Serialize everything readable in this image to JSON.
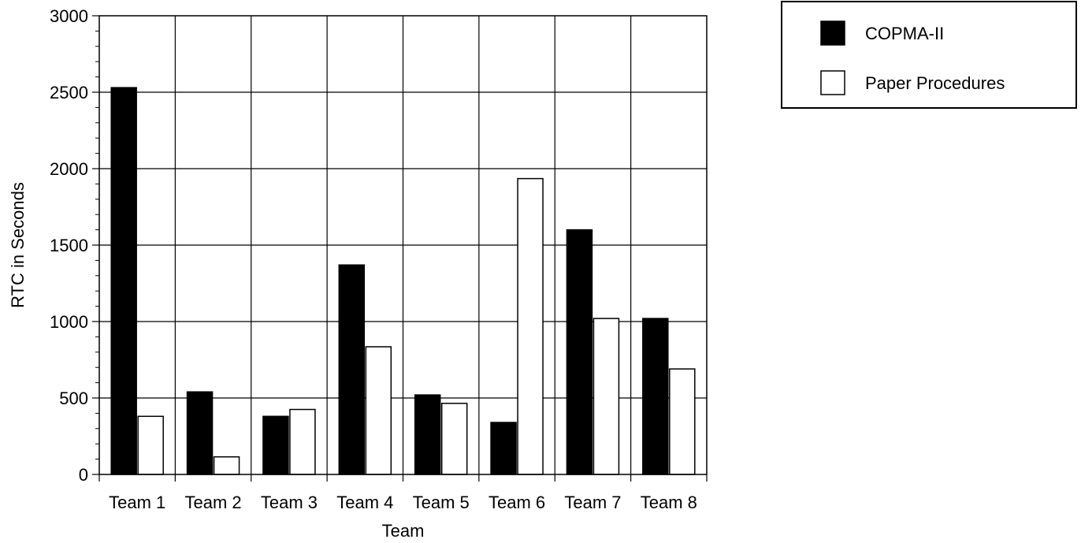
{
  "chart_data": {
    "type": "bar",
    "title": "",
    "xlabel": "Team",
    "ylabel": "RTC in Seconds",
    "ylim": [
      0,
      3000
    ],
    "yticks": [
      0,
      500,
      1000,
      1500,
      2000,
      2500,
      3000
    ],
    "categories": [
      "Team 1",
      "Team 2",
      "Team 3",
      "Team 4",
      "Team 5",
      "Team 6",
      "Team 7",
      "Team 8"
    ],
    "series": [
      {
        "name": "COPMA-II",
        "color": "#000000",
        "values": [
          2530,
          540,
          380,
          1370,
          520,
          340,
          1600,
          1020
        ]
      },
      {
        "name": "Paper Procedures",
        "color": "#ffffff",
        "values": [
          380,
          115,
          425,
          835,
          465,
          1935,
          1020,
          690
        ]
      }
    ],
    "grid": true,
    "legend_position": "top-right"
  }
}
